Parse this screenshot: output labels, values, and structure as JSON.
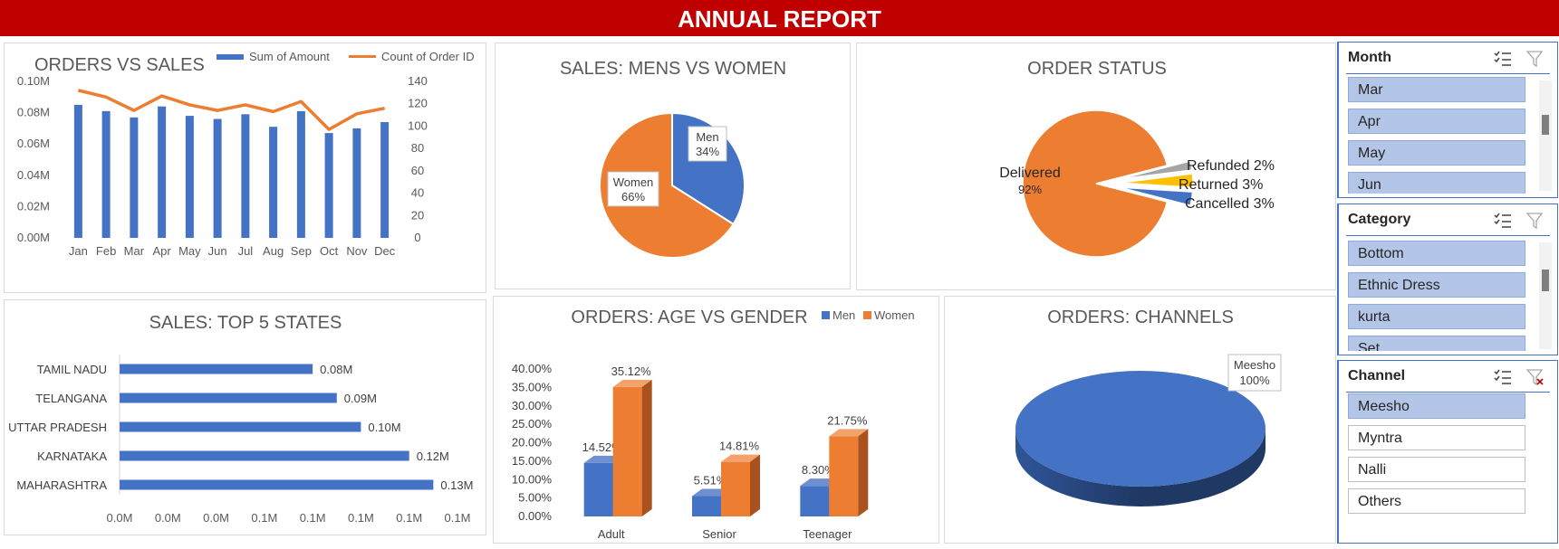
{
  "banner": {
    "title": "ANNUAL REPORT"
  },
  "colors": {
    "blue": "#4472c4",
    "orange": "#ed7d31",
    "gray": "#a5a5a5",
    "gold": "#ffc000",
    "red": "#c00000"
  },
  "chart_data": [
    {
      "type": "bar",
      "title": "ORDERS VS SALES",
      "categories": [
        "Jan",
        "Feb",
        "Mar",
        "Apr",
        "May",
        "Jun",
        "Jul",
        "Aug",
        "Sep",
        "Oct",
        "Nov",
        "Dec"
      ],
      "series": [
        {
          "name": "Sum of Amount",
          "values": [
            0.085,
            0.081,
            0.077,
            0.084,
            0.078,
            0.076,
            0.079,
            0.071,
            0.081,
            0.067,
            0.07,
            0.074
          ]
        },
        {
          "name": "Count of Order ID",
          "type": "line",
          "axis": "secondary",
          "values": [
            132,
            126,
            114,
            127,
            119,
            114,
            119,
            113,
            122,
            97,
            111,
            116
          ]
        }
      ],
      "y_ticks": [
        "0.00M",
        "0.02M",
        "0.04M",
        "0.06M",
        "0.08M",
        "0.10M"
      ],
      "ylim": [
        0,
        0.1
      ],
      "y2_ticks": [
        "0",
        "20",
        "40",
        "60",
        "80",
        "100",
        "120",
        "140"
      ],
      "y2lim": [
        0,
        140
      ],
      "legend": "top"
    },
    {
      "type": "pie",
      "title": "SALES: MENS VS WOMEN",
      "labels": [
        "Men",
        "Women"
      ],
      "values": [
        34,
        66
      ],
      "data_labels": [
        "34%",
        "66%"
      ]
    },
    {
      "type": "pie",
      "title": "ORDER STATUS",
      "labels": [
        "Delivered",
        "Refunded",
        "Returned",
        "Cancelled"
      ],
      "values": [
        92,
        2,
        3,
        3
      ],
      "data_labels": [
        "92%",
        "2%",
        "3%",
        "3%"
      ]
    },
    {
      "type": "bar",
      "orientation": "horizontal",
      "title": "SALES: TOP 5 STATES",
      "categories": [
        "TAMIL NADU",
        "TELANGANA",
        "UTTAR PRADESH",
        "KARNATAKA",
        "MAHARASHTRA"
      ],
      "values": [
        0.08,
        0.09,
        0.1,
        0.12,
        0.13
      ],
      "data_labels": [
        "0.08M",
        "0.09M",
        "0.10M",
        "0.12M",
        "0.13M"
      ],
      "x_ticks": [
        "0.0M",
        "0.0M",
        "0.0M",
        "0.1M",
        "0.1M",
        "0.1M",
        "0.1M",
        "0.1M"
      ],
      "xlim": [
        0,
        0.14
      ]
    },
    {
      "type": "bar",
      "title": "ORDERS: AGE VS GENDER",
      "categories": [
        "Adult",
        "Senior",
        "Teenager"
      ],
      "series": [
        {
          "name": "Men",
          "values": [
            14.52,
            5.51,
            8.3
          ],
          "data_labels": [
            "14.52%",
            "5.51%",
            "8.30%"
          ]
        },
        {
          "name": "Women",
          "values": [
            35.12,
            14.81,
            21.75
          ],
          "data_labels": [
            "35.12%",
            "14.81%",
            "21.75%"
          ]
        }
      ],
      "y_ticks": [
        "0.00%",
        "5.00%",
        "10.00%",
        "15.00%",
        "20.00%",
        "25.00%",
        "30.00%",
        "35.00%",
        "40.00%"
      ],
      "ylim": [
        0,
        40
      ],
      "legend": "top-right"
    },
    {
      "type": "pie",
      "title": "ORDERS: CHANNELS",
      "labels": [
        "Meesho"
      ],
      "values": [
        100
      ],
      "data_labels": [
        "100%"
      ]
    }
  ],
  "slicers": {
    "month": {
      "title": "Month",
      "items": [
        "Mar",
        "Apr",
        "May",
        "Jun"
      ]
    },
    "category": {
      "title": "Category",
      "items": [
        "Bottom",
        "Ethnic Dress",
        "kurta",
        "Set"
      ]
    },
    "channel": {
      "title": "Channel",
      "items": [
        "Meesho",
        "Myntra",
        "Nalli",
        "Others"
      ]
    }
  },
  "icons": {
    "multi_select": "multi-select-icon",
    "clear_filter": "clear-filter-icon"
  }
}
